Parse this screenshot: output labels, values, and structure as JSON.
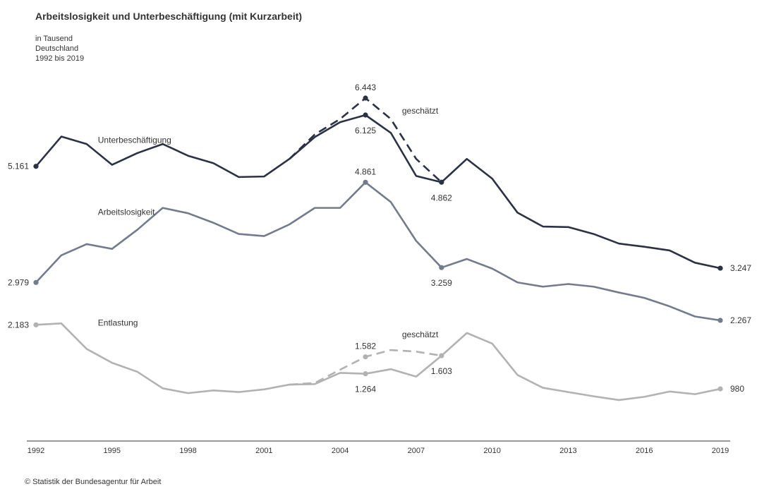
{
  "chart_data": {
    "type": "line",
    "title": "Arbeitslosigkeit und Unterbeschäftigung (mit Kurzarbeit)",
    "subtitle_lines": [
      "in Tausend",
      "Deutschland",
      "1992 bis 2019"
    ],
    "source": "© Statistik der Bundesagentur für Arbeit",
    "x": [
      1992,
      1993,
      1994,
      1995,
      1996,
      1997,
      1998,
      1999,
      2000,
      2001,
      2002,
      2003,
      2004,
      2005,
      2006,
      2007,
      2008,
      2009,
      2010,
      2011,
      2012,
      2013,
      2014,
      2015,
      2016,
      2017,
      2018,
      2019
    ],
    "x_ticks": [
      1992,
      1995,
      1998,
      2001,
      2004,
      2007,
      2010,
      2013,
      2016,
      2019
    ],
    "ylim": [
      0,
      7000
    ],
    "grid": false,
    "series": [
      {
        "name": "Unterbeschäftigung",
        "color": "#2b3245",
        "values": [
          5161,
          5720,
          5580,
          5190,
          5410,
          5580,
          5360,
          5220,
          4960,
          4970,
          5300,
          5710,
          5990,
          6125,
          5790,
          4980,
          4862,
          5300,
          4930,
          4290,
          4030,
          4020,
          3890,
          3710,
          3650,
          3580,
          3350,
          3247
        ]
      },
      {
        "name": "Arbeitslosigkeit",
        "color": "#737b8c",
        "values": [
          2979,
          3490,
          3700,
          3610,
          3970,
          4380,
          4280,
          4100,
          3890,
          3850,
          4070,
          4380,
          4380,
          4861,
          4490,
          3760,
          3259,
          3420,
          3240,
          2980,
          2900,
          2950,
          2900,
          2790,
          2690,
          2530,
          2340,
          2267
        ]
      },
      {
        "name": "Entlastung",
        "color": "#b2b2b2",
        "values": [
          2183,
          2210,
          1730,
          1470,
          1300,
          990,
          900,
          950,
          920,
          970,
          1060,
          1070,
          1280,
          1264,
          1350,
          1210,
          1603,
          2030,
          1830,
          1240,
          1000,
          920,
          840,
          770,
          830,
          930,
          880,
          980
        ]
      }
    ],
    "estimated_series": [
      {
        "label": "geschätzt",
        "color": "#2b3245",
        "x": [
          2002,
          2003,
          2004,
          2005,
          2006,
          2007,
          2008
        ],
        "values": [
          5300,
          5760,
          6050,
          6443,
          6050,
          5300,
          4862
        ]
      },
      {
        "label": "geschätzt",
        "color": "#b2b2b2",
        "x": [
          2002,
          2003,
          2004,
          2005,
          2006,
          2007,
          2008
        ],
        "values": [
          1060,
          1090,
          1340,
          1582,
          1710,
          1680,
          1603
        ]
      }
    ],
    "value_labels": [
      {
        "text": "5.161",
        "x": 1992,
        "value": 5161,
        "series": "Unterbeschäftigung",
        "pos": "left"
      },
      {
        "text": "2.979",
        "x": 1992,
        "value": 2979,
        "series": "Arbeitslosigkeit",
        "pos": "left"
      },
      {
        "text": "2.183",
        "x": 1992,
        "value": 2183,
        "series": "Entlastung",
        "pos": "left"
      },
      {
        "text": "3.247",
        "x": 2019,
        "value": 3247,
        "series": "Unterbeschäftigung",
        "pos": "right"
      },
      {
        "text": "2.267",
        "x": 2019,
        "value": 2267,
        "series": "Arbeitslosigkeit",
        "pos": "right"
      },
      {
        "text": "980",
        "x": 2019,
        "value": 980,
        "series": "Entlastung",
        "pos": "right"
      },
      {
        "text": "6.443",
        "x": 2005,
        "value": 6443,
        "series": "Unterbeschäftigung (geschätzt)",
        "pos": "above"
      },
      {
        "text": "6.125",
        "x": 2005,
        "value": 6125,
        "series": "Unterbeschäftigung",
        "pos": "below"
      },
      {
        "text": "4.862",
        "x": 2008,
        "value": 4862,
        "series": "Unterbeschäftigung",
        "pos": "below"
      },
      {
        "text": "4.861",
        "x": 2005,
        "value": 4861,
        "series": "Arbeitslosigkeit",
        "pos": "above"
      },
      {
        "text": "3.259",
        "x": 2008,
        "value": 3259,
        "series": "Arbeitslosigkeit",
        "pos": "below"
      },
      {
        "text": "1.582",
        "x": 2005,
        "value": 1582,
        "series": "Entlastung (geschätzt)",
        "pos": "above"
      },
      {
        "text": "1.264",
        "x": 2005,
        "value": 1264,
        "series": "Entlastung",
        "pos": "below"
      },
      {
        "text": "1.603",
        "x": 2008,
        "value": 1603,
        "series": "Entlastung",
        "pos": "below"
      }
    ],
    "series_labels": [
      {
        "text": "Unterbeschäftigung",
        "x": 1995,
        "value": 5600
      },
      {
        "text": "Arbeitslosigkeit",
        "x": 1995,
        "value": 4250
      },
      {
        "text": "Entlastung",
        "x": 1995,
        "value": 2170
      },
      {
        "text": "geschätzt",
        "x": 2007,
        "value": 6150
      },
      {
        "text": "geschätzt",
        "x": 2007,
        "value": 1950
      }
    ]
  }
}
